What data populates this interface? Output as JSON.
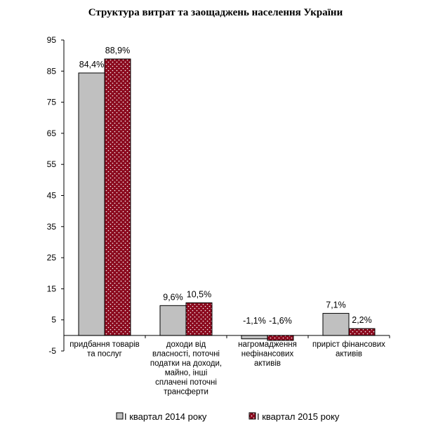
{
  "chart_data": {
    "type": "bar",
    "title": "Структура витрат  та заощаджень населення України",
    "categories": [
      [
        "придбання товарів",
        "та послуг"
      ],
      [
        "доходи від",
        "власності, поточні",
        "податки на доходи,",
        "майно, інші",
        "сплачені поточні",
        "трансферти"
      ],
      [
        "нагромадження",
        "нефінансових",
        "активів"
      ],
      [
        "приріст фінансових",
        "активів"
      ]
    ],
    "series": [
      {
        "name": "І квартал 2014 року",
        "values": [
          84.4,
          9.6,
          -1.1,
          7.1
        ],
        "labels": [
          "84,4%",
          "9,6%",
          "-1,1%",
          "7,1%"
        ],
        "color": "#c0c0c0",
        "pattern": "solid"
      },
      {
        "name": "І квартал 2015 року",
        "values": [
          88.9,
          10.5,
          -1.6,
          2.2
        ],
        "labels": [
          "88,9%",
          "10,5%",
          "-1,6%",
          "2,2%"
        ],
        "color": "#8b0a1e",
        "pattern": "dotted"
      }
    ],
    "yticks": [
      95,
      85,
      75,
      65,
      55,
      45,
      35,
      25,
      15,
      5,
      -5
    ],
    "ylim": [
      -5,
      95
    ],
    "grid": false,
    "legend_position": "bottom"
  }
}
